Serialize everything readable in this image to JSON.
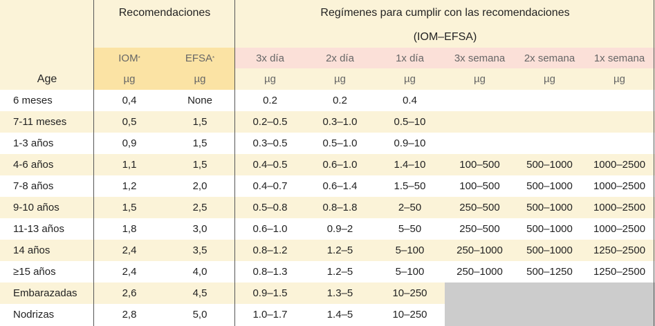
{
  "header": {
    "recomendaciones": "Recomendaciones",
    "regimenes_title": "Regímenes para cumplir con las recomendaciones",
    "regimenes_sub": "(IOM–EFSA)",
    "age": "Age",
    "iom": "IOM",
    "efsa": "EFSA",
    "asterisk": "*",
    "cols": [
      "3x día",
      "2x día",
      "1x día",
      "3x semana",
      "2x semana",
      "1x semana"
    ],
    "unit": "µg"
  },
  "rows": [
    {
      "age": "6 meses",
      "iom": "0,4",
      "efsa": "None",
      "d3": "0.2",
      "d2": "0.2",
      "d1": "0.4",
      "w3": "",
      "w2": "",
      "w1": ""
    },
    {
      "age": "7-11 meses",
      "iom": "0,5",
      "efsa": "1,5",
      "d3": "0.2–0.5",
      "d2": "0.3–1.0",
      "d1": "0.5–10",
      "w3": "",
      "w2": "",
      "w1": ""
    },
    {
      "age": "1-3 años",
      "iom": "0,9",
      "efsa": "1,5",
      "d3": "0.3–0.5",
      "d2": "0.5–1.0",
      "d1": "0.9–10",
      "w3": "",
      "w2": "",
      "w1": ""
    },
    {
      "age": "4-6 años",
      "iom": "1,1",
      "efsa": "1,5",
      "d3": "0.4–0.5",
      "d2": "0.6–1.0",
      "d1": "1.4–10",
      "w3": "100–500",
      "w2": "500–1000",
      "w1": "1000–2500"
    },
    {
      "age": "7-8 años",
      "iom": "1,2",
      "efsa": "2,0",
      "d3": "0.4–0.7",
      "d2": "0.6–1.4",
      "d1": "1.5–50",
      "w3": "100–500",
      "w2": "500–1000",
      "w1": "1000–2500"
    },
    {
      "age": "9-10 años",
      "iom": "1,5",
      "efsa": "2,5",
      "d3": "0.5–0.8",
      "d2": "0.8–1.8",
      "d1": "2–50",
      "w3": "250–500",
      "w2": "500–1000",
      "w1": "1000–2500"
    },
    {
      "age": "11-13 años",
      "iom": "1,8",
      "efsa": "3,0",
      "d3": "0.6–1.0",
      "d2": "0.9–2",
      "d1": "5–50",
      "w3": "250–500",
      "w2": "500–1000",
      "w1": "1000–2500"
    },
    {
      "age": "14 años",
      "iom": "2,4",
      "efsa": "3,5",
      "d3": "0.8–1.2",
      "d2": "1.2–5",
      "d1": "5–100",
      "w3": "250–1000",
      "w2": "500–1000",
      "w1": "1250–2500"
    },
    {
      "age": "≥15 años",
      "iom": "2,4",
      "efsa": "4,0",
      "d3": "0.8–1.3",
      "d2": "1.2–5",
      "d1": "5–100",
      "w3": "250–1000",
      "w2": "500–1250",
      "w1": "1250–2500"
    },
    {
      "age": "Embarazadas",
      "iom": "2,6",
      "efsa": "4,5",
      "d3": "0.9–1.5",
      "d2": "1.3–5",
      "d1": "10–250",
      "w3": "",
      "w2": "",
      "w1": ""
    },
    {
      "age": "Nodrizas",
      "iom": "2,8",
      "efsa": "5,0",
      "d3": "1.0–1.7",
      "d2": "1.4–5",
      "d1": "10–250",
      "w3": "",
      "w2": "",
      "w1": ""
    }
  ],
  "colors": {
    "cream": "#fbf3d8",
    "gold": "#fbe3a4",
    "pink": "#fbe0d8",
    "gray": "#cccccc",
    "line": "#555555"
  }
}
